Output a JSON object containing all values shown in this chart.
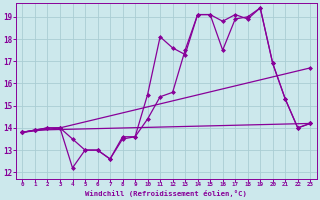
{
  "background_color": "#cce8ec",
  "grid_color": "#aacdd4",
  "line_color": "#880099",
  "marker": "D",
  "marker_size": 2.0,
  "line_width": 0.9,
  "xlabel": "Windchill (Refroidissement éolien,°C)",
  "xlim_min": -0.5,
  "xlim_max": 23.5,
  "ylim_min": 11.7,
  "ylim_max": 19.6,
  "yticks": [
    12,
    13,
    14,
    15,
    16,
    17,
    18,
    19
  ],
  "xticks": [
    0,
    1,
    2,
    3,
    4,
    5,
    6,
    7,
    8,
    9,
    10,
    11,
    12,
    13,
    14,
    15,
    16,
    17,
    18,
    19,
    20,
    21,
    22,
    23
  ],
  "series1_x": [
    0,
    1,
    2,
    3,
    4,
    5,
    6,
    7,
    8,
    9,
    10,
    11,
    12,
    13,
    14,
    15,
    16,
    17,
    18,
    19,
    20,
    21,
    22,
    23
  ],
  "series1_y": [
    13.8,
    13.9,
    14.0,
    14.0,
    12.2,
    13.0,
    13.0,
    12.6,
    13.6,
    13.6,
    15.5,
    18.1,
    17.6,
    17.3,
    19.1,
    19.1,
    18.8,
    19.1,
    18.9,
    19.4,
    16.9,
    15.3,
    14.0,
    14.2
  ],
  "series2_x": [
    0,
    1,
    2,
    3,
    4,
    5,
    6,
    7,
    8,
    9,
    10,
    11,
    12,
    13,
    14,
    15,
    16,
    17,
    18,
    19,
    20,
    21,
    22,
    23
  ],
  "series2_y": [
    13.8,
    13.9,
    14.0,
    14.0,
    13.5,
    13.0,
    13.0,
    12.6,
    13.5,
    13.6,
    14.4,
    15.4,
    15.6,
    17.5,
    19.1,
    19.1,
    17.5,
    18.9,
    19.0,
    19.4,
    16.9,
    15.3,
    14.0,
    14.2
  ],
  "series3_x": [
    0,
    3,
    23
  ],
  "series3_y": [
    13.8,
    14.0,
    16.7
  ],
  "series4_x": [
    0,
    1,
    23
  ],
  "series4_y": [
    13.8,
    13.9,
    14.2
  ]
}
